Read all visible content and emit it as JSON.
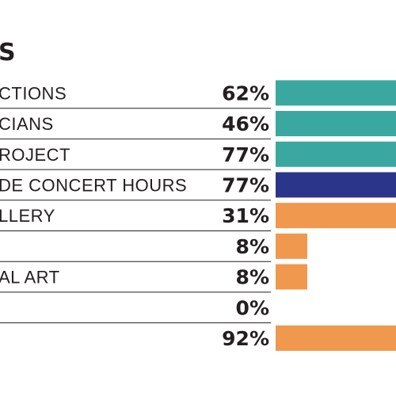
{
  "chart_data": {
    "type": "bar",
    "orientation": "horizontal",
    "title": "S",
    "categories": [
      "CTIONS",
      "CIANS",
      "ROJECT",
      "DE CONCERT HOURS",
      "LLERY",
      "",
      "AL ART",
      "",
      ""
    ],
    "values": [
      62,
      46,
      77,
      77,
      31,
      8,
      8,
      0,
      92
    ],
    "value_labels": [
      "62%",
      "46%",
      "77%",
      "77%",
      "31%",
      "8%",
      "8%",
      "0%",
      "92%"
    ],
    "bar_colors": [
      "#3aa8a0",
      "#3aa8a0",
      "#3aa8a0",
      "#2b3589",
      "#f0984e",
      "#f0984e",
      "#f0984e",
      "#f0984e",
      "#f0984e"
    ],
    "xlim": [
      0,
      100
    ],
    "grid": false,
    "legend": "none"
  },
  "colors": {
    "teal": "#3aa8a0",
    "navy": "#2b3589",
    "orange": "#f0984e",
    "text": "#231f20",
    "divider": "#231f20"
  }
}
